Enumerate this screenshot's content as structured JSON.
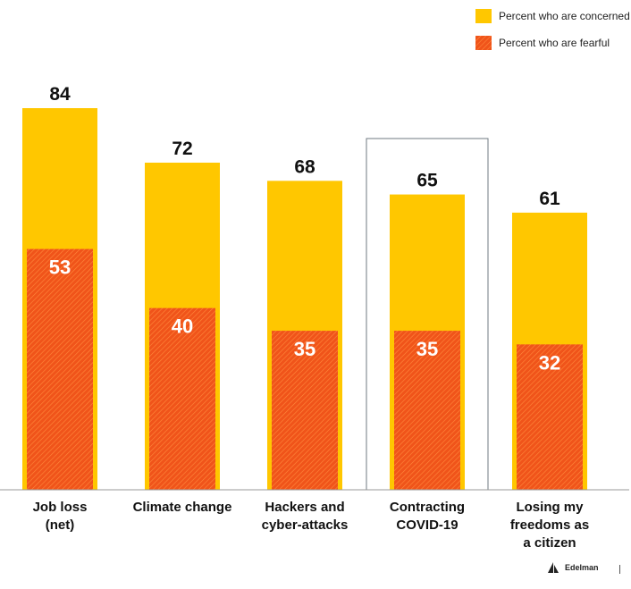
{
  "chart_data": {
    "type": "bar",
    "categories": [
      [
        "Job loss",
        "(net)"
      ],
      [
        "Climate change"
      ],
      [
        "Hackers and",
        "cyber-attacks"
      ],
      [
        "Contracting",
        "COVID-19"
      ],
      [
        "Losing my",
        "freedoms as",
        "a citizen"
      ]
    ],
    "series": [
      {
        "name": "Percent who are concerned",
        "values": [
          84,
          72,
          68,
          65,
          61
        ],
        "color": "#FFC700"
      },
      {
        "name": "Percent who are fearful",
        "values": [
          53,
          40,
          35,
          35,
          32
        ],
        "color": "#F05A14"
      }
    ],
    "highlighted_category": 3,
    "ylim": [
      0,
      84
    ],
    "legend": "top-right"
  },
  "brand": {
    "name": "Edelman"
  }
}
